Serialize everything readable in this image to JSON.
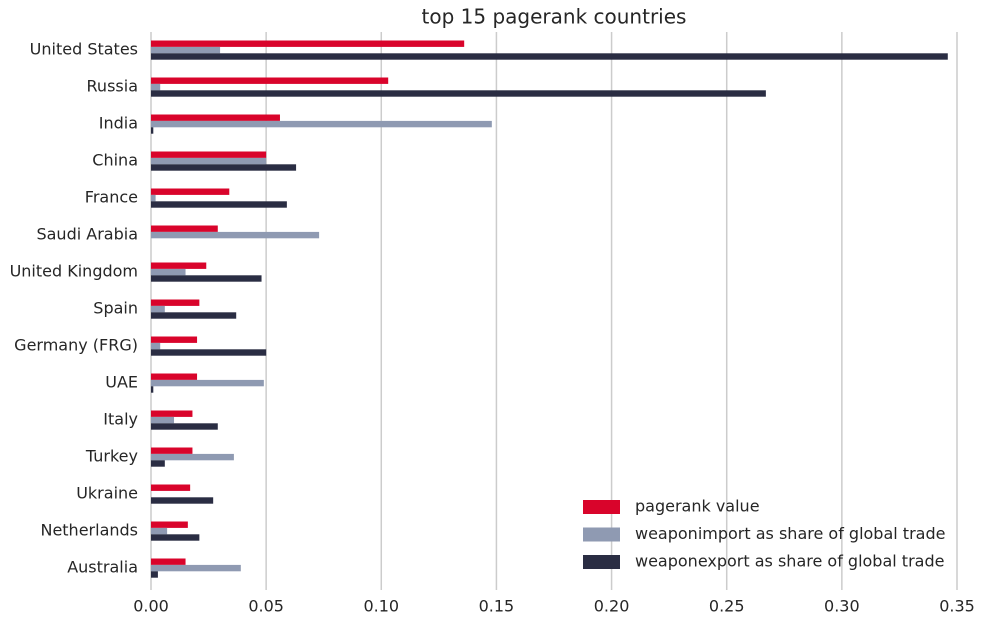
{
  "chart_data": {
    "type": "barh",
    "title": "top 15 pagerank countries",
    "categories": [
      "United States",
      "Russia",
      "India",
      "China",
      "France",
      "Saudi Arabia",
      "United Kingdom",
      "Spain",
      "Germany (FRG)",
      "UAE",
      "Italy",
      "Turkey",
      "Ukraine",
      "Netherlands",
      "Australia"
    ],
    "series": [
      {
        "name": "pagerank value",
        "color": "#d9042b",
        "values": [
          0.136,
          0.103,
          0.056,
          0.05,
          0.034,
          0.029,
          0.024,
          0.021,
          0.02,
          0.02,
          0.018,
          0.018,
          0.017,
          0.016,
          0.015
        ]
      },
      {
        "name": "weaponimport as share of global trade",
        "color": "#8f9ab2",
        "values": [
          0.03,
          0.004,
          0.148,
          0.05,
          0.002,
          0.073,
          0.015,
          0.006,
          0.004,
          0.049,
          0.01,
          0.036,
          0.0,
          0.007,
          0.039
        ]
      },
      {
        "name": "weaponexport as share of global trade",
        "color": "#2a2d43",
        "values": [
          0.346,
          0.267,
          0.001,
          0.063,
          0.059,
          0.0,
          0.048,
          0.037,
          0.05,
          0.001,
          0.029,
          0.006,
          0.027,
          0.021,
          0.003
        ]
      }
    ],
    "xlim": [
      0,
      0.35
    ],
    "xticks": [
      {
        "value": 0,
        "label": "0.00"
      },
      0.05,
      {
        "value": 0.1,
        "label": "0.10"
      },
      0.15,
      {
        "value": 0.2,
        "label": "0.20"
      },
      0.25,
      {
        "value": 0.3,
        "label": "0.30"
      },
      0.35
    ],
    "grid": true,
    "legend": "lower right"
  }
}
